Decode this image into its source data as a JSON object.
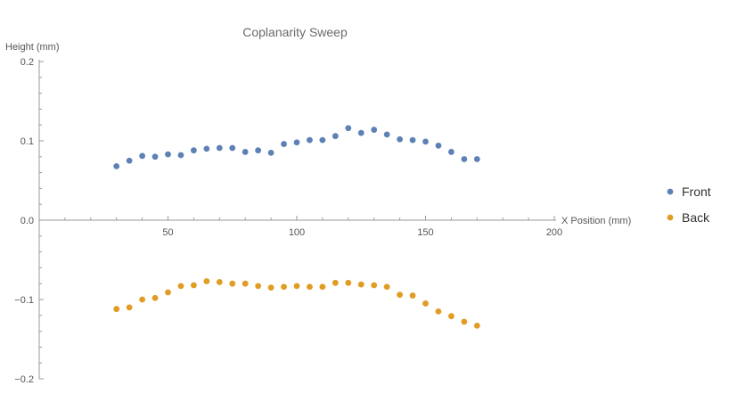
{
  "chart_data": {
    "type": "scatter",
    "title": "Coplanarity Sweep",
    "xlabel": "X Position (mm)",
    "ylabel": "Height (mm)",
    "xlim": [
      0,
      200
    ],
    "ylim": [
      -0.2,
      0.2
    ],
    "x_ticks": [
      "50",
      "100",
      "150",
      "200"
    ],
    "y_ticks": [
      "0.2",
      "0.1",
      "0.0",
      "−0.1",
      "−0.2"
    ],
    "grid": false,
    "legend_position": "right",
    "series": [
      {
        "name": "Front",
        "color": "#5e81b5",
        "x": [
          30,
          35,
          40,
          45,
          50,
          55,
          60,
          65,
          70,
          75,
          80,
          85,
          90,
          95,
          100,
          105,
          110,
          115,
          120,
          125,
          130,
          135,
          140,
          145,
          150,
          155,
          160,
          165,
          170
        ],
        "y": [
          0.068,
          0.075,
          0.081,
          0.08,
          0.083,
          0.082,
          0.088,
          0.09,
          0.091,
          0.091,
          0.086,
          0.088,
          0.085,
          0.096,
          0.098,
          0.101,
          0.101,
          0.106,
          0.116,
          0.11,
          0.114,
          0.108,
          0.102,
          0.101,
          0.099,
          0.094,
          0.086,
          0.077,
          0.077
        ]
      },
      {
        "name": "Back",
        "color": "#e19c24",
        "x": [
          30,
          35,
          40,
          45,
          50,
          55,
          60,
          65,
          70,
          75,
          80,
          85,
          90,
          95,
          100,
          105,
          110,
          115,
          120,
          125,
          130,
          135,
          140,
          145,
          150,
          155,
          160,
          165,
          170
        ],
        "y": [
          -0.112,
          -0.11,
          -0.1,
          -0.098,
          -0.091,
          -0.083,
          -0.082,
          -0.077,
          -0.078,
          -0.08,
          -0.08,
          -0.083,
          -0.085,
          -0.084,
          -0.083,
          -0.084,
          -0.084,
          -0.079,
          -0.079,
          -0.081,
          -0.082,
          -0.084,
          -0.094,
          -0.095,
          -0.105,
          -0.115,
          -0.121,
          -0.128,
          -0.133
        ]
      }
    ]
  }
}
